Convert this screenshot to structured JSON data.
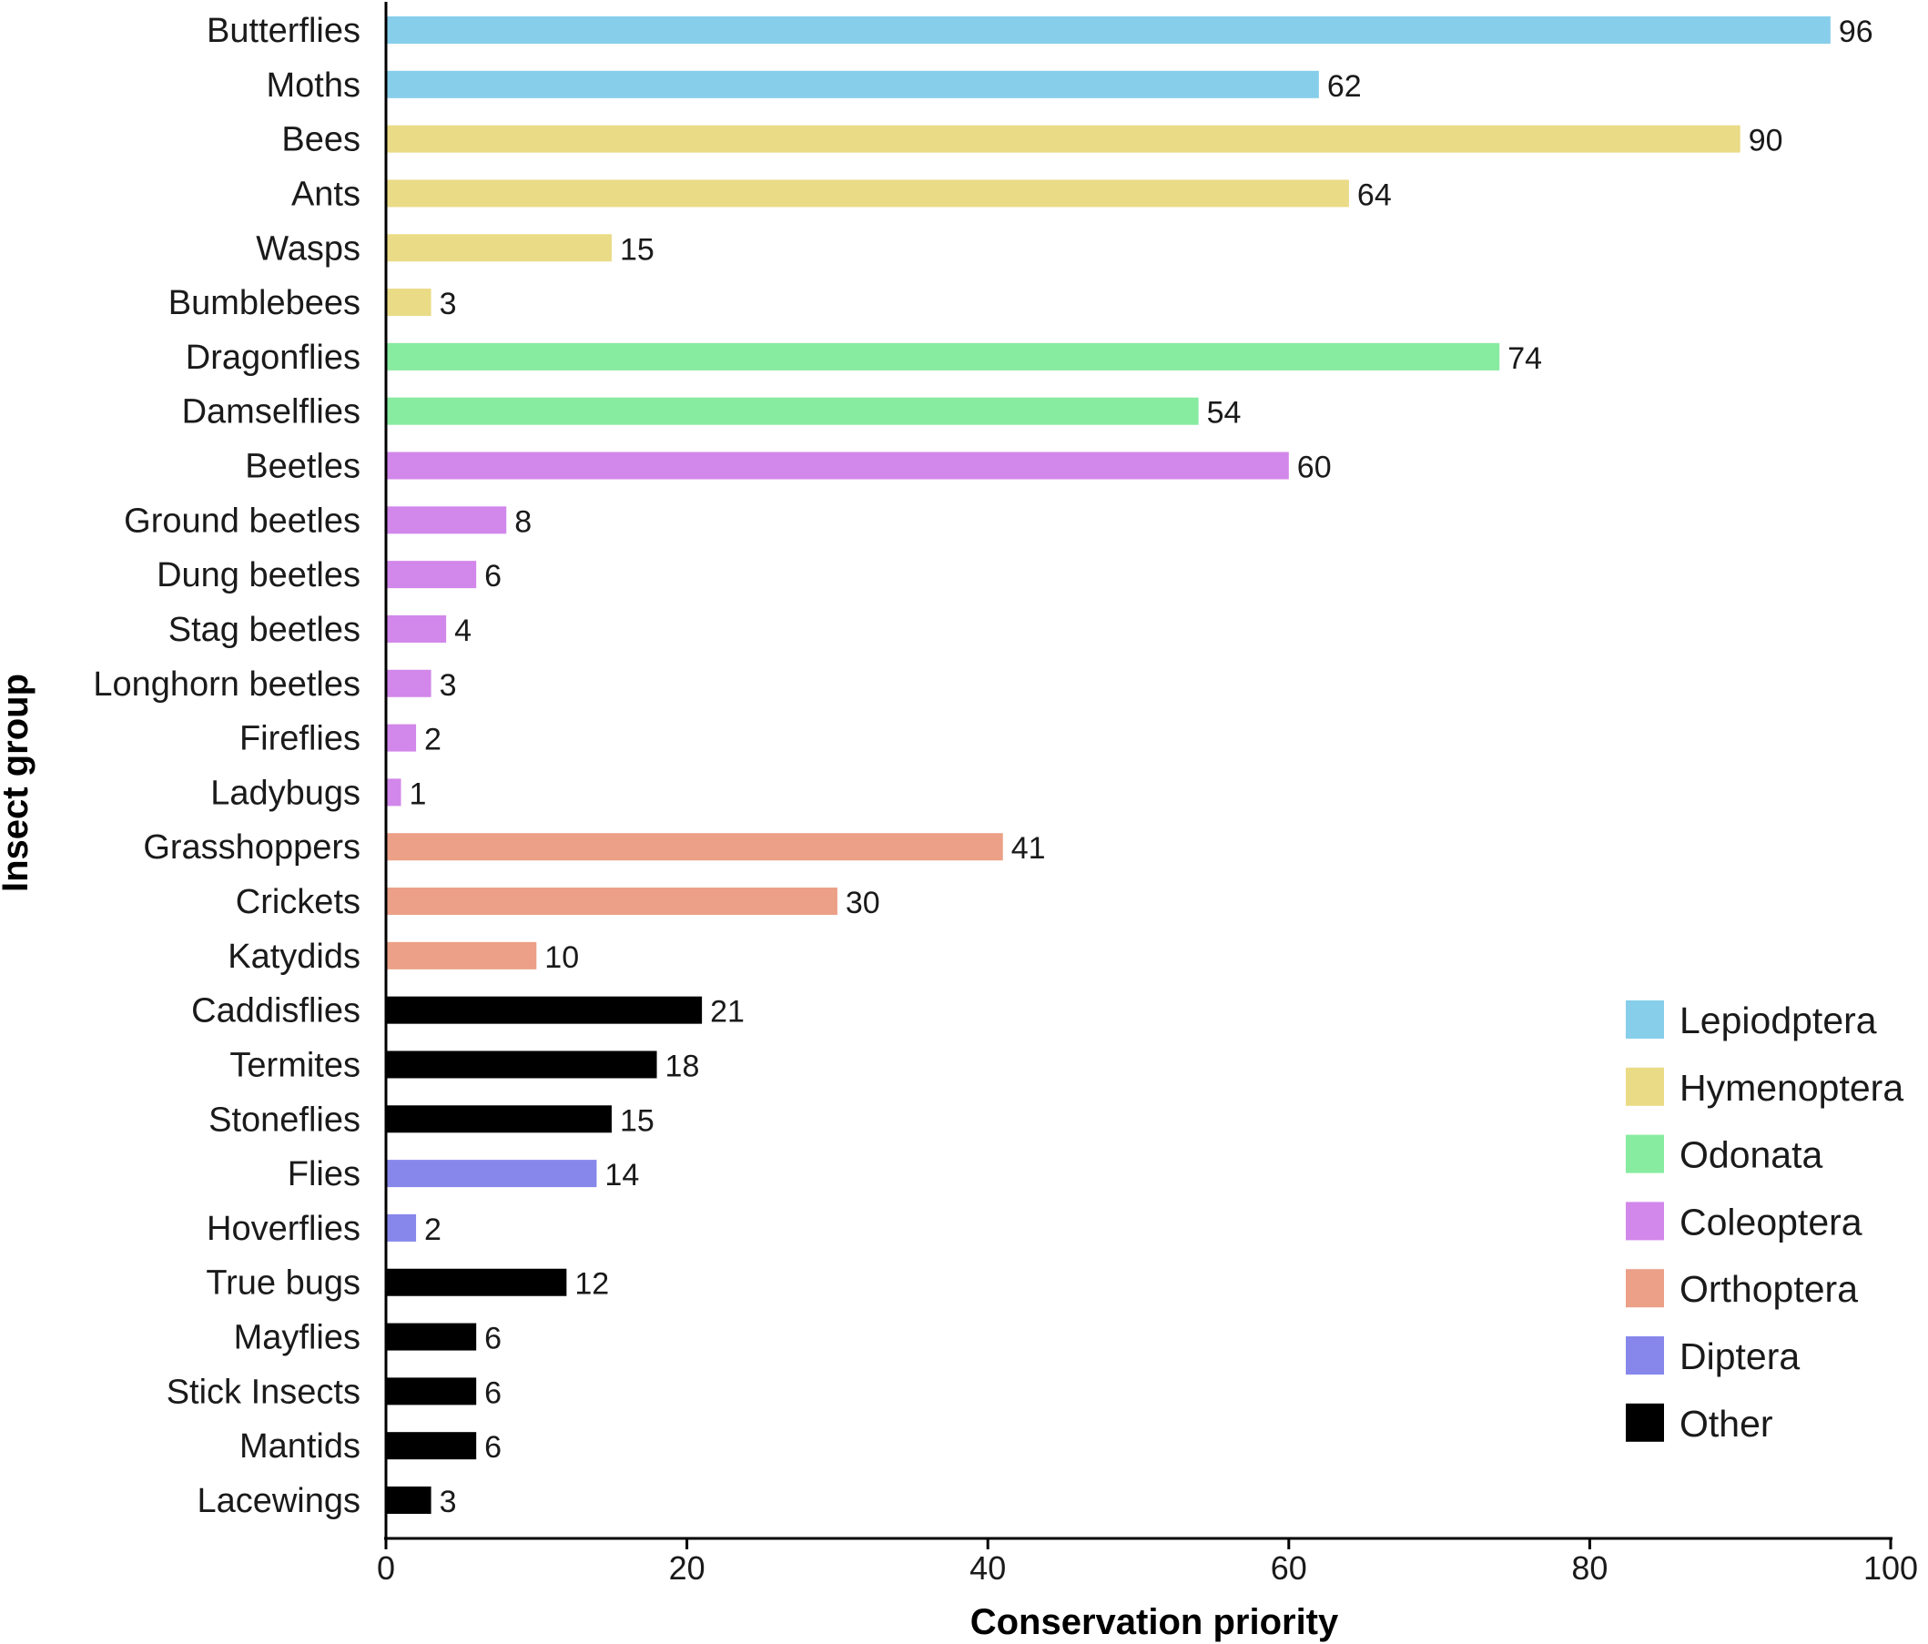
{
  "chart_data": {
    "type": "bar",
    "orientation": "horizontal",
    "xlabel": "Conservation priority",
    "ylabel": "Insect group",
    "xlim": [
      0,
      100
    ],
    "xticks": [
      0,
      20,
      40,
      60,
      80,
      100
    ],
    "grid": false,
    "legend_position": "bottom-right",
    "groups": [
      {
        "name": "Lepiodptera",
        "color": "#87ceeb"
      },
      {
        "name": "Hymenoptera",
        "color": "#eadb87"
      },
      {
        "name": "Odonata",
        "color": "#87eba0"
      },
      {
        "name": "Coleoptera",
        "color": "#d287eb"
      },
      {
        "name": "Orthoptera",
        "color": "#eba087"
      },
      {
        "name": "Diptera",
        "color": "#8787eb"
      },
      {
        "name": "Other",
        "color": "#000000"
      }
    ],
    "bars": [
      {
        "category": "Butterflies",
        "value": 96,
        "group": "Lepiodptera"
      },
      {
        "category": "Moths",
        "value": 62,
        "group": "Lepiodptera"
      },
      {
        "category": "Bees",
        "value": 90,
        "group": "Hymenoptera"
      },
      {
        "category": "Ants",
        "value": 64,
        "group": "Hymenoptera"
      },
      {
        "category": "Wasps",
        "value": 15,
        "group": "Hymenoptera"
      },
      {
        "category": "Bumblebees",
        "value": 3,
        "group": "Hymenoptera"
      },
      {
        "category": "Dragonflies",
        "value": 74,
        "group": "Odonata"
      },
      {
        "category": "Damselflies",
        "value": 54,
        "group": "Odonata"
      },
      {
        "category": "Beetles",
        "value": 60,
        "group": "Coleoptera"
      },
      {
        "category": "Ground beetles",
        "value": 8,
        "group": "Coleoptera"
      },
      {
        "category": "Dung beetles",
        "value": 6,
        "group": "Coleoptera"
      },
      {
        "category": "Stag beetles",
        "value": 4,
        "group": "Coleoptera"
      },
      {
        "category": "Longhorn beetles",
        "value": 3,
        "group": "Coleoptera"
      },
      {
        "category": "Fireflies",
        "value": 2,
        "group": "Coleoptera"
      },
      {
        "category": "Ladybugs",
        "value": 1,
        "group": "Coleoptera"
      },
      {
        "category": "Grasshoppers",
        "value": 41,
        "group": "Orthoptera"
      },
      {
        "category": "Crickets",
        "value": 30,
        "group": "Orthoptera"
      },
      {
        "category": "Katydids",
        "value": 10,
        "group": "Orthoptera"
      },
      {
        "category": "Caddisflies",
        "value": 21,
        "group": "Other"
      },
      {
        "category": "Termites",
        "value": 18,
        "group": "Other"
      },
      {
        "category": "Stoneflies",
        "value": 15,
        "group": "Other"
      },
      {
        "category": "Flies",
        "value": 14,
        "group": "Diptera"
      },
      {
        "category": "Hoverflies",
        "value": 2,
        "group": "Diptera"
      },
      {
        "category": "True bugs",
        "value": 12,
        "group": "Other"
      },
      {
        "category": "Mayflies",
        "value": 6,
        "group": "Other"
      },
      {
        "category": "Stick Insects",
        "value": 6,
        "group": "Other"
      },
      {
        "category": "Mantids",
        "value": 6,
        "group": "Other"
      },
      {
        "category": "Lacewings",
        "value": 3,
        "group": "Other"
      }
    ]
  }
}
